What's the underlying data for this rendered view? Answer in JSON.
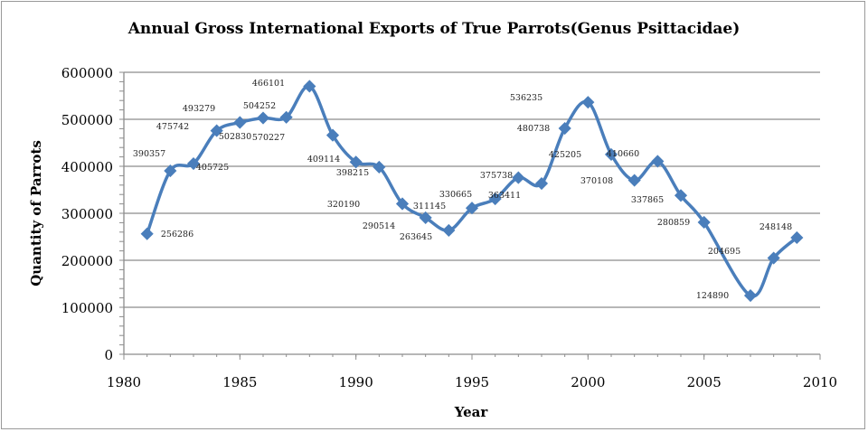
{
  "chart_data": {
    "type": "line",
    "title": "Annual Gross International Exports of True Parrots(Genus Psittacidae)",
    "xlabel": "Year",
    "ylabel": "Quantity of Parrots",
    "xlim": [
      1980,
      2010
    ],
    "ylim": [
      0,
      600000
    ],
    "x_ticks": [
      "1980",
      "1985",
      "1990",
      "1995",
      "2000",
      "2005",
      "2010"
    ],
    "y_ticks": [
      "0",
      "100000",
      "200000",
      "300000",
      "400000",
      "500000",
      "600000"
    ],
    "grid": true,
    "smooth": true,
    "line_color": "#4a7ebb",
    "x": [
      1981,
      1982,
      1983,
      1984,
      1985,
      1986,
      1987,
      1988,
      1989,
      1990,
      1991,
      1992,
      1993,
      1994,
      1995,
      1996,
      1997,
      1998,
      1999,
      2000,
      2001,
      2002,
      2003,
      2004,
      2005,
      2007,
      2008,
      2009
    ],
    "y": [
      256286,
      390357,
      405725,
      475742,
      493279,
      502830,
      504252,
      570227,
      466101,
      409114,
      398215,
      320190,
      290514,
      263645,
      311145,
      330665,
      375738,
      363411,
      480738,
      536235,
      425205,
      370108,
      410660,
      337865,
      280859,
      124890,
      204695,
      248148
    ],
    "data_labels": [
      "256286",
      "390357",
      "405725",
      "475742",
      "493279",
      "502830",
      "504252",
      "570227",
      "466101",
      "409114",
      "398215",
      "320190",
      "290514",
      "263645",
      "311145",
      "330665",
      "375738",
      "363411",
      "480738",
      "536235",
      "425205",
      "370108",
      "410660",
      "337865",
      "280859",
      "124890",
      "204695",
      "248148"
    ]
  }
}
